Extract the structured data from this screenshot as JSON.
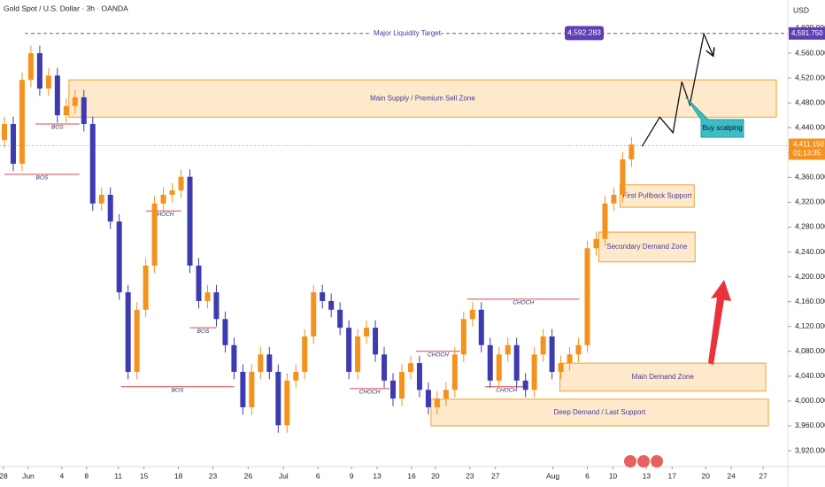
{
  "chart_data": {
    "type": "candlestick",
    "title": "Gold Spot / U.S. Dollar · 3h · OANDA",
    "y_axis_label": "USD",
    "up_color": "#f5921e",
    "down_color": "#3d3bb0",
    "x": [
      0,
      1,
      2,
      3,
      4,
      5,
      6,
      7,
      8,
      9,
      10,
      11,
      12,
      13,
      14,
      15,
      16,
      17,
      18,
      19,
      20,
      21,
      22,
      23,
      24,
      25,
      26,
      27,
      28,
      29,
      30,
      31,
      32,
      33,
      34,
      35,
      36,
      37,
      38,
      39,
      40,
      41,
      42,
      43,
      44,
      45,
      46,
      47,
      48,
      49,
      50,
      51,
      52,
      53,
      54,
      55,
      56,
      57,
      58,
      59,
      60,
      61,
      62,
      63,
      64,
      65,
      66,
      67,
      68,
      69,
      70,
      71
    ],
    "open": [
      4420,
      4446,
      4382,
      4517,
      4560,
      4503,
      4524,
      4460,
      4475,
      4489,
      4446,
      4318,
      4332,
      4289,
      4175,
      4047,
      4147,
      4218,
      4318,
      4332,
      4339,
      4361,
      4218,
      4161,
      4175,
      4132,
      4090,
      4047,
      3990,
      4047,
      4075,
      4047,
      3961,
      4033,
      4047,
      4104,
      4175,
      4161,
      4147,
      4118,
      4047,
      4104,
      4118,
      4075,
      4033,
      4004,
      4047,
      4061,
      4018,
      3990,
      4004,
      4018,
      4075,
      4132,
      4147,
      4090,
      4033,
      4075,
      4090,
      4033,
      4018,
      4075,
      4104,
      4047,
      4061,
      4075,
      4090,
      4246,
      4261,
      4318,
      4332,
      4389
    ],
    "high": [
      4458,
      4458,
      4529,
      4572,
      4572,
      4536,
      4536,
      4487,
      4501,
      4501,
      4458,
      4344,
      4344,
      4301,
      4187,
      4159,
      4230,
      4330,
      4344,
      4351,
      4373,
      4373,
      4230,
      4187,
      4187,
      4144,
      4102,
      4059,
      4059,
      4087,
      4087,
      4059,
      4045,
      4059,
      4116,
      4187,
      4187,
      4173,
      4159,
      4130,
      4116,
      4130,
      4130,
      4087,
      4045,
      4059,
      4073,
      4073,
      4030,
      4016,
      4030,
      4087,
      4144,
      4159,
      4159,
      4102,
      4087,
      4102,
      4102,
      4045,
      4087,
      4116,
      4116,
      4073,
      4087,
      4102,
      4258,
      4273,
      4330,
      4344,
      4401,
      4425
    ],
    "low": [
      4408,
      4370,
      4370,
      4505,
      4491,
      4491,
      4448,
      4448,
      4463,
      4434,
      4306,
      4306,
      4277,
      4163,
      4035,
      4035,
      4135,
      4206,
      4306,
      4320,
      4327,
      4206,
      4149,
      4149,
      4120,
      4078,
      4035,
      3978,
      3978,
      4035,
      4035,
      3949,
      3949,
      4021,
      4035,
      4092,
      4149,
      4135,
      4106,
      4035,
      4035,
      4092,
      4063,
      4021,
      3992,
      3992,
      4035,
      4006,
      3978,
      3978,
      3992,
      4006,
      4063,
      4120,
      4078,
      4021,
      4021,
      4063,
      4021,
      4006,
      4006,
      4063,
      4035,
      4035,
      4049,
      4063,
      4078,
      4234,
      4249,
      4306,
      4320,
      4377
    ],
    "close": [
      4446,
      4382,
      4517,
      4560,
      4503,
      4524,
      4460,
      4475,
      4489,
      4446,
      4318,
      4332,
      4289,
      4175,
      4047,
      4147,
      4218,
      4318,
      4332,
      4339,
      4361,
      4218,
      4161,
      4175,
      4132,
      4090,
      4047,
      3990,
      4047,
      4075,
      4047,
      3961,
      4033,
      4047,
      4104,
      4175,
      4161,
      4147,
      4118,
      4047,
      4104,
      4118,
      4075,
      4033,
      4004,
      4047,
      4061,
      4018,
      3990,
      4004,
      4018,
      4075,
      4132,
      4147,
      4090,
      4033,
      4075,
      4090,
      4033,
      4018,
      4075,
      4104,
      4047,
      4061,
      4075,
      4090,
      4246,
      4261,
      4318,
      4332,
      4389,
      4413
    ],
    "xlim": [
      -0.5,
      88.7
    ],
    "ylim": [
      3894.4,
      4645.6
    ],
    "xticks": [
      {
        "value": -0.1,
        "label": "28"
      },
      {
        "value": 2.7,
        "label": "Jun"
      },
      {
        "value": 6.5,
        "label": "4"
      },
      {
        "value": 9.3,
        "label": "8"
      },
      {
        "value": 12.9,
        "label": "11"
      },
      {
        "value": 15.8,
        "label": "15"
      },
      {
        "value": 19.7,
        "label": "18"
      },
      {
        "value": 23.6,
        "label": "23"
      },
      {
        "value": 27.6,
        "label": "26"
      },
      {
        "value": 31.6,
        "label": "Jul"
      },
      {
        "value": 35.5,
        "label": "6"
      },
      {
        "value": 39.3,
        "label": "9"
      },
      {
        "value": 42.2,
        "label": "13"
      },
      {
        "value": 46.1,
        "label": "16"
      },
      {
        "value": 48.8,
        "label": "20"
      },
      {
        "value": 52.7,
        "label": "23"
      },
      {
        "value": 55.6,
        "label": "27"
      },
      {
        "value": 62.1,
        "label": "Aug"
      },
      {
        "value": 66,
        "label": "6"
      },
      {
        "value": 68.9,
        "label": "10"
      },
      {
        "value": 72.7,
        "label": "13"
      },
      {
        "value": 75.6,
        "label": "17"
      },
      {
        "value": 79.4,
        "label": "20"
      },
      {
        "value": 82.3,
        "label": "24"
      },
      {
        "value": 85.9,
        "label": "27"
      }
    ],
    "yticks": [
      {
        "value": 4600,
        "label": "4,600.000"
      },
      {
        "value": 4560,
        "label": "4,560.000"
      },
      {
        "value": 4520,
        "label": "4,520.000"
      },
      {
        "value": 4480,
        "label": "4,480.000"
      },
      {
        "value": 4440,
        "label": "4,440.000"
      },
      {
        "value": 4400,
        "label": "4,400.000"
      },
      {
        "value": 4360,
        "label": "4,360.000"
      },
      {
        "value": 4320,
        "label": "4,320.000"
      },
      {
        "value": 4280,
        "label": "4,280.000"
      },
      {
        "value": 4240,
        "label": "4,240.000"
      },
      {
        "value": 4200,
        "label": "4,200.000"
      },
      {
        "value": 4160,
        "label": "4,160.000"
      },
      {
        "value": 4120,
        "label": "4,120.000"
      },
      {
        "value": 4080,
        "label": "4,080.000"
      },
      {
        "value": 4040,
        "label": "4,040.000"
      },
      {
        "value": 4000,
        "label": "4,000.000"
      },
      {
        "value": 3960,
        "label": "3,960.000"
      },
      {
        "value": 3920,
        "label": "3,920.000"
      }
    ],
    "zones": [
      {
        "label": "Main Supply / Premium Sell Zone",
        "top": 4517,
        "bottom": 4457,
        "x0": 7.3,
        "x1": 87.4
      },
      {
        "label": "First Pullback Support",
        "top": 4348,
        "bottom": 4312,
        "x0": 69.7,
        "x1": 78.1
      },
      {
        "label": "Secondary Demand Zone",
        "top": 4272,
        "bottom": 4224,
        "x0": 67.3,
        "x1": 78.2
      },
      {
        "label": "Main Demand Zone",
        "top": 4061,
        "bottom": 4016,
        "x0": 62.9,
        "x1": 86.2
      },
      {
        "label": "Deep Demand / Last Support",
        "top": 4003,
        "bottom": 3960,
        "x0": 48.3,
        "x1": 86.5
      }
    ],
    "levels": [
      {
        "label": "BOS",
        "value": 4446,
        "x0": 3.5,
        "x1": 8.5
      },
      {
        "label": "BOS",
        "value": 4365,
        "x0": 0,
        "x1": 8.5
      },
      {
        "label": "CHOCH",
        "value": 4306,
        "x0": 16,
        "x1": 20
      },
      {
        "label": "BOS",
        "value": 4118,
        "x0": 21,
        "x1": 24
      },
      {
        "label": "BOS",
        "value": 4023,
        "x0": 13.2,
        "x1": 26
      },
      {
        "label": "CHOCH",
        "value": 4020,
        "x0": 39.1,
        "x1": 43.6
      },
      {
        "label": "CHOCH",
        "value": 4080,
        "x0": 46.6,
        "x1": 51.6
      },
      {
        "label": "CHOCH",
        "value": 4164,
        "x0": 52.4,
        "x1": 65.1
      },
      {
        "label": "CHOCH",
        "value": 4023,
        "x0": 54.4,
        "x1": 59.3
      }
    ],
    "target": {
      "name": "Major Liquidity Target",
      "value": 4591.75,
      "label": "4,591.750",
      "tag": {
        "value": 4592.283,
        "label": "4,592.283"
      }
    },
    "last_price": {
      "value": 4411.15,
      "label": "4,411.150",
      "countdown": "01:13:35"
    },
    "projection": {
      "x": [
        72.2,
        74.2,
        75.7,
        76.7,
        77.6,
        79.2,
        80.2
      ],
      "values": [
        4410,
        4457,
        4432,
        4514,
        4477,
        4591,
        4557
      ]
    },
    "callout": "Buy scalping"
  }
}
